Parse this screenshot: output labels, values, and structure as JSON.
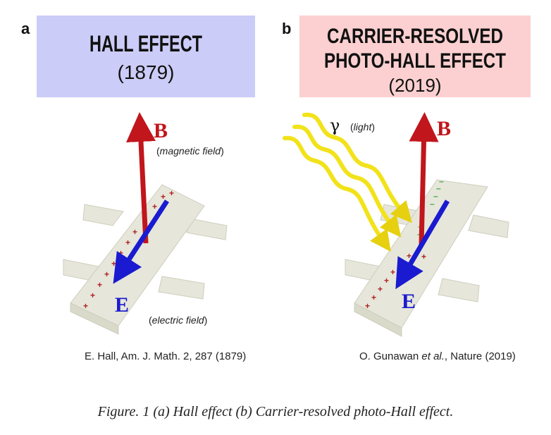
{
  "panel_a": {
    "letter": "a",
    "title": "HALL EFFECT",
    "year": "(1879)",
    "box_color": "#ccccf8",
    "b_label": "B",
    "b_desc_prefix": "(",
    "b_desc": "magnetic field",
    "b_desc_suffix": ")",
    "e_label": "E",
    "e_desc_prefix": "(",
    "e_desc": "electric field",
    "e_desc_suffix": ")",
    "reference": "E. Hall, Am. J. Math. 2, 287 (1879)"
  },
  "panel_b": {
    "letter": "b",
    "title_line1": "CARRIER-RESOLVED",
    "title_line2": "PHOTO-HALL EFFECT",
    "year": "(2019)",
    "box_color": "#fcd0d0",
    "gamma_label": "γ",
    "light_desc_prefix": "(",
    "light_desc": "light",
    "light_desc_suffix": ")",
    "b_label": "B",
    "e_label": "E",
    "reference_author": "O. Gunawan ",
    "reference_etal": "et al.",
    "reference_rest": ", Nature (2019)"
  },
  "colors": {
    "b_field": "#c0161c",
    "e_field": "#1a1ad0",
    "light": "#f2e21a",
    "holes": "#b02020",
    "electrons": "#3aa83a"
  },
  "caption": "Figure. 1 (a) Hall effect (b) Carrier-resolved photo-Hall effect."
}
